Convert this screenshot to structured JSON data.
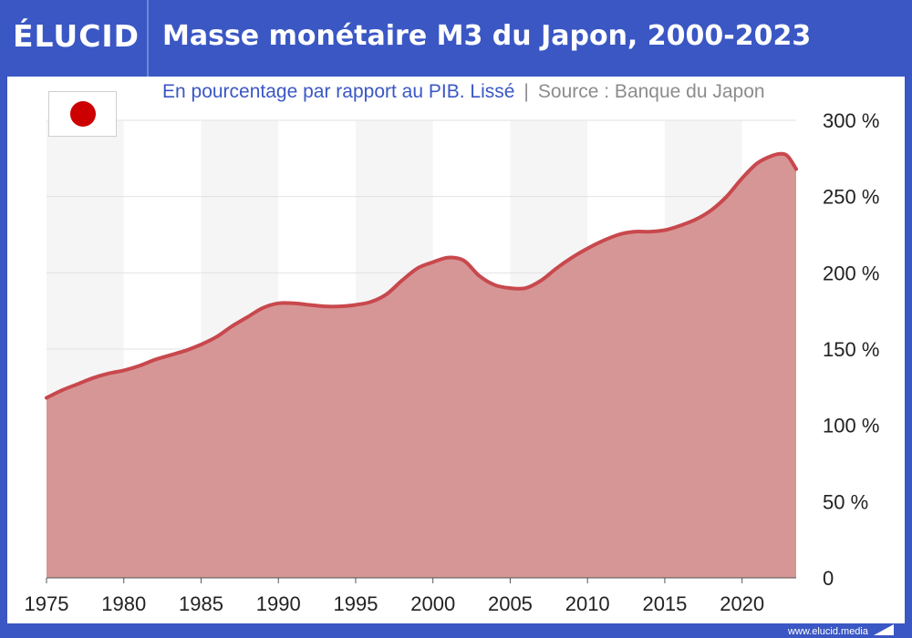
{
  "header": {
    "logo": "ÉLUCID",
    "title": "Masse monétaire M3 du Japon, 2000-2023"
  },
  "subtitle": {
    "main": "En pourcentage par rapport au PIB. Lissé",
    "separator": "|",
    "source": "Source : Banque du Japon"
  },
  "flag": {
    "icon": "japan-flag-icon",
    "color": "#cc0000"
  },
  "footer": {
    "url": "www.elucid.media"
  },
  "colors": {
    "brand": "#3a57c4",
    "line": "#c8484d",
    "fill": "#d79696",
    "band": "#f5f5f5"
  },
  "chart_data": {
    "type": "area",
    "title": "Masse monétaire M3 du Japon, 2000-2023",
    "xlabel": "",
    "ylabel": "",
    "xlim": [
      1975,
      2023.5
    ],
    "ylim": [
      0,
      300
    ],
    "x_ticks": [
      1975,
      1980,
      1985,
      1990,
      1995,
      2000,
      2005,
      2010,
      2015,
      2020
    ],
    "x_tick_labels": [
      "1975",
      "1980",
      "1985",
      "1990",
      "1995",
      "2000",
      "2005",
      "2010",
      "2015",
      "2020"
    ],
    "y_ticks": [
      0,
      50,
      100,
      150,
      200,
      250,
      300
    ],
    "y_tick_labels": [
      "0",
      "50 %",
      "100 %",
      "150 %",
      "200 %",
      "250 %",
      "300 %"
    ],
    "grid": true,
    "series": [
      {
        "x": [
          1975,
          1976,
          1977,
          1978,
          1979,
          1980,
          1981,
          1982,
          1983,
          1984,
          1985,
          1986,
          1987,
          1988,
          1989,
          1990,
          1991,
          1992,
          1993,
          1994,
          1995,
          1996,
          1997,
          1998,
          1999,
          2000,
          2001,
          2002,
          2003,
          2004,
          2005,
          2006,
          2007,
          2008,
          2009,
          2010,
          2011,
          2012,
          2013,
          2014,
          2015,
          2016,
          2017,
          2018,
          2019,
          2020,
          2021,
          2022,
          2022.6,
          2023,
          2023.5
        ],
        "values": [
          118,
          123,
          127,
          131,
          134,
          136,
          139,
          143,
          146,
          149,
          153,
          158,
          165,
          171,
          177,
          180,
          180,
          179,
          178,
          178,
          179,
          181,
          186,
          195,
          203,
          207,
          210,
          208,
          198,
          192,
          190,
          190,
          195,
          203,
          210,
          216,
          221,
          225,
          227,
          227,
          228,
          231,
          235,
          241,
          250,
          262,
          272,
          277,
          278,
          276,
          268
        ]
      }
    ]
  }
}
